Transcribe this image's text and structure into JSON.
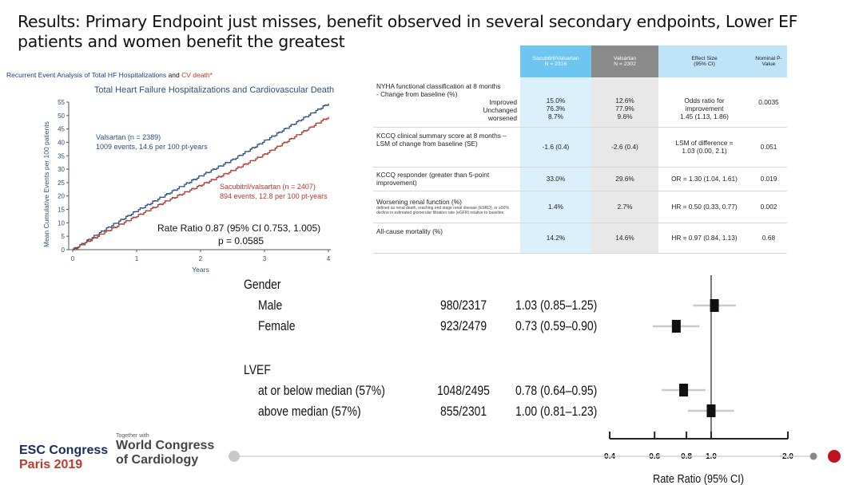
{
  "title": "Results: Primary Endpoint just misses, benefit observed in several secondary endpoints, Lower EF patients and women benefit the greatest",
  "km_chart": {
    "caption_pre": "Recurrent Event Analysis of Total HF Hospitalizations",
    "caption_and": "and",
    "caption_cv": "CV death*",
    "chart_title": "Total Heart Failure Hospitalizations and Cardiovascular Death",
    "ylabel": "Mean Cumulative Events per 100 patients",
    "xlabel": "Years",
    "valsartan_label_1": "Valsartan (n = 2389)",
    "valsartan_label_2": "1009 events, 14.6 per 100 pt-years",
    "sacubitril_label_1": "Sacubitril/valsartan (n = 2407)",
    "sacubitril_label_2": "894 events, 12.8 per 100 pt-years",
    "rate_ratio": "Rate Ratio 0.87 (95% CI 0.753, 1.005)",
    "p_value": "p = 0.0585",
    "colors": {
      "valsartan": "#2b4f7e",
      "sacubitril": "#b03a2e"
    }
  },
  "table": {
    "headers": {
      "sac": "Sacubitril/Valsartan",
      "sac_n": "N = 2316",
      "val": "Valsartan",
      "val_n": "N = 2302",
      "eff": "Effect Size",
      "eff_ci": "(95% CI)",
      "pv": "Nominal P-",
      "pv2": "Value"
    },
    "rows": [
      {
        "label": "NYHA functional classification at 8 months - Change from baseline (%)",
        "sub1": "Improved",
        "sub2": "Unchanged",
        "sub3": "worsened",
        "sac1": "15.0%",
        "sac2": "76.3%",
        "sac3": "8.7%",
        "val1": "12.6%",
        "val2": "77.9%",
        "val3": "9.6%",
        "eff1": "Odds ratio for",
        "eff2": "improvement",
        "eff3": "1.45 (1.13, 1.86)",
        "p": "0.0035"
      },
      {
        "label": "KCCQ clinical summary score at 8 months – LSM of change from baseline (SE)",
        "sac": "-1.6 (0.4)",
        "val": "-2.6 (0.4)",
        "eff1": "LSM of difference =",
        "eff2": "1.03 (0.00, 2.1)",
        "p": "0.051"
      },
      {
        "label": "KCCQ responder (greater than 5-point improvement)",
        "sac": "33.0%",
        "val": "29.6%",
        "eff": "OR = 1.30 (1.04, 1.61)",
        "p": "0.019"
      },
      {
        "label": "Worsening renal function (%)",
        "note": "defined as renal death, reaching end stage renal disease (ESRD), or ≥50% decline in estimated glomerular filtration rate (eGFR) relative to baseline",
        "sac": "1.4%",
        "val": "2.7%",
        "eff": "HR = 0.50 (0.33, 0.77)",
        "p": "0.002"
      },
      {
        "label": "All-cause mortality  (%)",
        "sac": "14.2%",
        "val": "14.6%",
        "eff": "HR = 0.97 (0.84, 1.13)",
        "p": "0.68"
      }
    ]
  },
  "forest": {
    "gender_header": "Gender",
    "lvef_header": "LVEF",
    "rows": {
      "male": {
        "label": "Male",
        "events": "980/2317",
        "rr": "1.03 (0.85–1.25)"
      },
      "female": {
        "label": "Female",
        "events": "923/2479",
        "rr": "0.73 (0.59–0.90)"
      },
      "low": {
        "label": "at or below median (57%)",
        "events": "1048/2495",
        "rr": "0.78 (0.64–0.95)"
      },
      "high": {
        "label": "above median (57%)",
        "events": "855/2301",
        "rr": "1.00 (0.81–1.23)"
      }
    },
    "axis_label": "Rate Ratio (95% CI)"
  },
  "chart_data": [
    {
      "type": "line",
      "title": "Total Heart Failure Hospitalizations and Cardiovascular Death",
      "xlabel": "Years",
      "ylabel": "Mean Cumulative Events per 100 patients",
      "xlim": [
        0,
        4
      ],
      "ylim": [
        0,
        55
      ],
      "xticks": [
        "0",
        "1",
        "2",
        "3",
        "4"
      ],
      "yticks": [
        "0",
        "5",
        "10",
        "15",
        "20",
        "25",
        "30",
        "35",
        "40",
        "45",
        "50",
        "55"
      ],
      "series": [
        {
          "name": "Valsartan (n = 2389)",
          "x": [
            0,
            0.5,
            1,
            1.5,
            2,
            2.5,
            3,
            3.5,
            4
          ],
          "y": [
            0,
            7.5,
            14.5,
            21,
            27.5,
            33.5,
            40.5,
            47.5,
            54.5
          ]
        },
        {
          "name": "Sacubitril/valsartan (n = 2407)",
          "x": [
            0,
            0.5,
            1,
            1.5,
            2,
            2.5,
            3,
            3.5,
            4
          ],
          "y": [
            0,
            6.5,
            12.5,
            18.5,
            24,
            29.5,
            35.5,
            42.5,
            49.5
          ]
        }
      ]
    },
    {
      "type": "scatter",
      "title": "Rate Ratio (95% CI)",
      "xlabel": "Rate Ratio (95% CI)",
      "xscale": "log",
      "xlim": [
        0.4,
        2.0
      ],
      "xticks": [
        "0.4",
        "0.6",
        "0.8",
        "1.0",
        "2.0"
      ],
      "reference_line": 1.0,
      "points": [
        {
          "name": "Male",
          "rr": 1.03,
          "lo": 0.85,
          "hi": 1.25
        },
        {
          "name": "Female",
          "rr": 0.73,
          "lo": 0.59,
          "hi": 0.9
        },
        {
          "name": "at or below median (57%)",
          "rr": 0.78,
          "lo": 0.64,
          "hi": 0.95
        },
        {
          "name": "above median (57%)",
          "rr": 1.0,
          "lo": 0.81,
          "hi": 1.23
        }
      ]
    }
  ],
  "logo": {
    "esc_1": "ESC Congress",
    "esc_2": "Paris 2019",
    "together": "Together with",
    "wc_1": "World Congress",
    "wc_2": "of Cardiology"
  }
}
